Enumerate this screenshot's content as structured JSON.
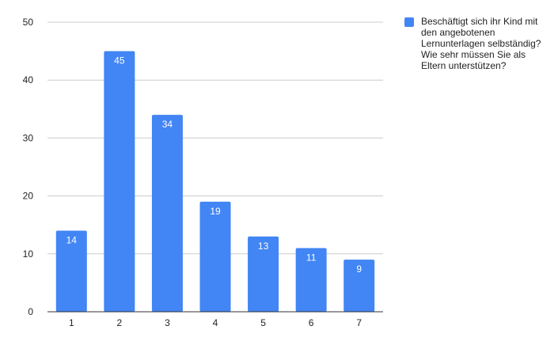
{
  "chart_data": {
    "type": "bar",
    "categories": [
      "1",
      "2",
      "3",
      "4",
      "5",
      "6",
      "7"
    ],
    "series": [
      {
        "name": "Beschäftigt sich ihr Kind mit den angebotenen Lernunterlagen selbständig? Wie sehr müssen Sie als Eltern unterstützen?",
        "values": [
          14,
          45,
          34,
          19,
          13,
          11,
          9
        ]
      }
    ],
    "ylim": [
      0,
      50
    ],
    "yticks": [
      0,
      10,
      20,
      30,
      40,
      50
    ],
    "grid": true,
    "legend_position": "right",
    "data_labels": true,
    "colors": {
      "bar": "#4285f4",
      "grid": "#cccccc",
      "axis": "#333333"
    }
  }
}
